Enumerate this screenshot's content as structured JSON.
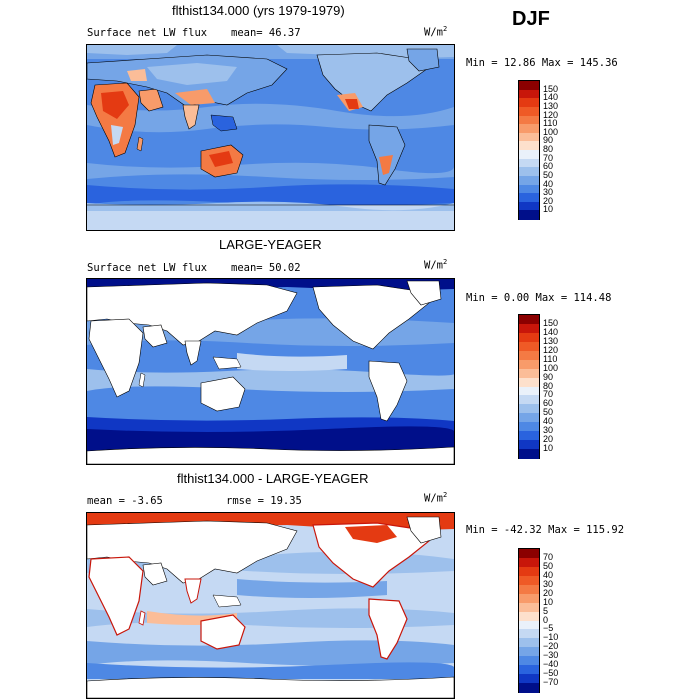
{
  "season": "DJF",
  "unit_base": "W/m",
  "unit_exp": "2",
  "panels": [
    {
      "title": "flthist134.000 (yrs 1979-1979)",
      "left_label": "Surface net LW flux",
      "right_label": "mean=  46.37",
      "minmax": "Min =  12.86 Max = 145.36",
      "colorbar": {
        "labels": [
          "150",
          "140",
          "130",
          "120",
          "110",
          "100",
          "90",
          "80",
          "70",
          "60",
          "50",
          "40",
          "30",
          "20",
          "10"
        ],
        "colors": [
          "#8b0000",
          "#c8160a",
          "#e43a12",
          "#ef5a26",
          "#f47a44",
          "#f89b6a",
          "#fbbd98",
          "#fde0cc",
          "#eaf1fa",
          "#c5d9f3",
          "#9dc0ec",
          "#75a5e7",
          "#4e88e4",
          "#2a63de",
          "#1037c4",
          "#000f8a"
        ]
      }
    },
    {
      "title": "LARGE-YEAGER",
      "left_label": "Surface net LW flux",
      "right_label": "mean=  50.02",
      "minmax": "Min =   0.00 Max = 114.48",
      "colorbar": {
        "labels": [
          "150",
          "140",
          "130",
          "120",
          "110",
          "100",
          "90",
          "80",
          "70",
          "60",
          "50",
          "40",
          "30",
          "20",
          "10"
        ],
        "colors": [
          "#8b0000",
          "#c8160a",
          "#e43a12",
          "#ef5a26",
          "#f47a44",
          "#f89b6a",
          "#fbbd98",
          "#fde0cc",
          "#eaf1fa",
          "#c5d9f3",
          "#9dc0ec",
          "#75a5e7",
          "#4e88e4",
          "#2a63de",
          "#1037c4",
          "#000f8a"
        ]
      }
    },
    {
      "title": "flthist134.000 - LARGE-YEAGER",
      "left_label": "mean =  -3.65",
      "right_label": "rmse =  19.35",
      "minmax": "Min = -42.32 Max = 115.92",
      "colorbar": {
        "labels": [
          "70",
          "50",
          "40",
          "30",
          "20",
          "10",
          "5",
          "0",
          "−5",
          "−10",
          "−20",
          "−30",
          "−40",
          "−50",
          "−70"
        ],
        "colors": [
          "#8b0000",
          "#c8160a",
          "#e43a12",
          "#ef5a26",
          "#f47a44",
          "#f89b6a",
          "#fbbd98",
          "#fde0cc",
          "#eaf1fa",
          "#c5d9f3",
          "#9dc0ec",
          "#75a5e7",
          "#4e88e4",
          "#2a63de",
          "#1037c4",
          "#000f8a"
        ]
      }
    }
  ]
}
